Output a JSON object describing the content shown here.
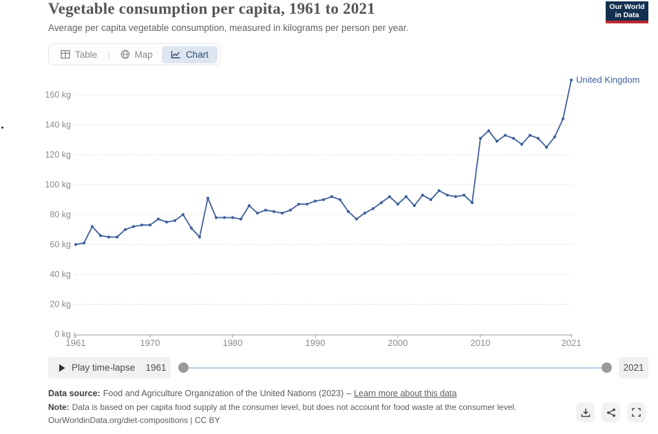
{
  "header": {
    "title": "Vegetable consumption per capita, 1961 to 2021",
    "subtitle": "Average per capita vegetable consumption, measured in kilograms per person per year.",
    "logo": {
      "line1": "Our World",
      "line2": "in Data"
    }
  },
  "tabs": [
    {
      "label": "Table",
      "active": false
    },
    {
      "label": "Map",
      "active": false
    },
    {
      "label": "Chart",
      "active": true
    }
  ],
  "chart_data": {
    "type": "line",
    "title": "Vegetable consumption per capita, 1961 to 2021",
    "ylabel": "",
    "xlabel": "",
    "unit": "kg",
    "xlim": [
      1961,
      2021
    ],
    "ylim": [
      0,
      175
    ],
    "grid": true,
    "legend_position": "end-of-line label",
    "x_ticks": [
      1961,
      1970,
      1980,
      1990,
      2000,
      2010,
      2021
    ],
    "y_ticks": [
      0,
      20,
      40,
      60,
      80,
      100,
      120,
      140,
      160
    ],
    "y_tick_suffix": " kg",
    "x": [
      1961,
      1962,
      1963,
      1964,
      1965,
      1966,
      1967,
      1968,
      1969,
      1970,
      1971,
      1972,
      1973,
      1974,
      1975,
      1976,
      1977,
      1978,
      1979,
      1980,
      1981,
      1982,
      1983,
      1984,
      1985,
      1986,
      1987,
      1988,
      1989,
      1990,
      1991,
      1992,
      1993,
      1994,
      1995,
      1996,
      1997,
      1998,
      1999,
      2000,
      2001,
      2002,
      2003,
      2004,
      2005,
      2006,
      2007,
      2008,
      2009,
      2010,
      2011,
      2012,
      2013,
      2014,
      2015,
      2016,
      2017,
      2018,
      2019,
      2020,
      2021
    ],
    "series": [
      {
        "name": "United Kingdom",
        "color": "#3d5e9c",
        "values": [
          60,
          61,
          72,
          66,
          65,
          65,
          70,
          72,
          73,
          73,
          77,
          75,
          76,
          80,
          71,
          65,
          91,
          78,
          78,
          78,
          77,
          86,
          81,
          83,
          82,
          81,
          83,
          87,
          87,
          89,
          90,
          92,
          90,
          82,
          77,
          81,
          84,
          88,
          92,
          87,
          92,
          86,
          93,
          90,
          96,
          93,
          92,
          93,
          88,
          131,
          136,
          129,
          133,
          131,
          127,
          133,
          131,
          125,
          132,
          144,
          170
        ]
      }
    ]
  },
  "timeline": {
    "play_label": "Play time-lapse",
    "start_year": "1961",
    "end_year": "2021"
  },
  "footer": {
    "source_label": "Data source:",
    "source_text": "Food and Agriculture Organization of the United Nations (2023)",
    "separator": "–",
    "link_label": "Learn more about this data",
    "note_label": "Note:",
    "note_text": "Data is based on per capita food supply at the consumer level, but does not account for food waste at the consumer level.",
    "attribution": "OurWorldinData.org/diet-compositions | CC BY"
  },
  "colors": {
    "line": "#3d5e9c",
    "active_tab_bg": "#dde6f0",
    "active_tab_text": "#2c4a70",
    "logo_bg": "#12304f",
    "logo_red": "#c0282d",
    "control_bg": "#f1f1f1",
    "gridline": "#dedede",
    "axis_text": "#8b8b8b",
    "slider_track": "#b6cde2",
    "slider_handle": "#999999"
  }
}
